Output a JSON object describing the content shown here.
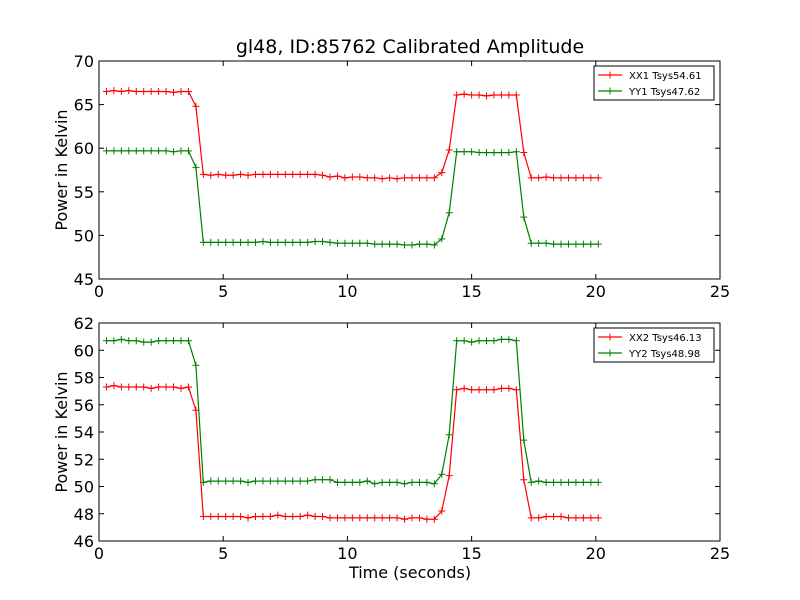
{
  "chart_data": [
    {
      "type": "line",
      "title": "gl48, ID:85762 Calibrated Amplitude",
      "xlabel": "",
      "ylabel": "Power in Kelvin",
      "xlim": [
        0,
        25
      ],
      "ylim": [
        45,
        70
      ],
      "xticks": [
        "0",
        "5",
        "10",
        "15",
        "20",
        "25"
      ],
      "yticks": [
        "45",
        "50",
        "55",
        "60",
        "65",
        "70"
      ],
      "grid": false,
      "legend_position": "top-right",
      "series": [
        {
          "name": "XX1 Tsys54.61",
          "color": "#ff0000",
          "x": [
            0.3,
            0.6,
            0.9,
            1.2,
            1.5,
            1.8,
            2.1,
            2.4,
            2.7,
            3.0,
            3.3,
            3.6,
            3.9,
            4.2,
            4.5,
            4.8,
            5.1,
            5.4,
            5.7,
            6.0,
            6.3,
            6.6,
            6.9,
            7.2,
            7.5,
            7.8,
            8.1,
            8.4,
            8.7,
            9.0,
            9.3,
            9.6,
            9.9,
            10.2,
            10.5,
            10.8,
            11.1,
            11.4,
            11.7,
            12.0,
            12.3,
            12.6,
            12.9,
            13.2,
            13.5,
            13.8,
            14.1,
            14.4,
            14.7,
            15.0,
            15.3,
            15.6,
            15.9,
            16.2,
            16.5,
            16.8,
            17.1,
            17.4,
            17.7,
            18.0,
            18.3,
            18.6,
            18.9,
            19.2,
            19.5,
            19.8,
            20.1
          ],
          "y": [
            66.5,
            66.6,
            66.5,
            66.6,
            66.5,
            66.5,
            66.5,
            66.5,
            66.5,
            66.4,
            66.5,
            66.5,
            64.8,
            57.0,
            56.9,
            57.0,
            56.9,
            56.9,
            57.0,
            56.9,
            57.0,
            57.0,
            57.0,
            57.0,
            57.0,
            57.0,
            57.0,
            57.0,
            57.0,
            56.9,
            56.7,
            56.8,
            56.6,
            56.7,
            56.7,
            56.6,
            56.6,
            56.5,
            56.6,
            56.5,
            56.6,
            56.6,
            56.6,
            56.6,
            56.6,
            57.2,
            59.8,
            66.1,
            66.2,
            66.1,
            66.1,
            66.0,
            66.1,
            66.1,
            66.1,
            66.1,
            59.5,
            56.6,
            56.6,
            56.7,
            56.6,
            56.6,
            56.6,
            56.6,
            56.6,
            56.6,
            56.6
          ]
        },
        {
          "name": "YY1 Tsys47.62",
          "color": "#008000",
          "x": [
            0.3,
            0.6,
            0.9,
            1.2,
            1.5,
            1.8,
            2.1,
            2.4,
            2.7,
            3.0,
            3.3,
            3.6,
            3.9,
            4.2,
            4.5,
            4.8,
            5.1,
            5.4,
            5.7,
            6.0,
            6.3,
            6.6,
            6.9,
            7.2,
            7.5,
            7.8,
            8.1,
            8.4,
            8.7,
            9.0,
            9.3,
            9.6,
            9.9,
            10.2,
            10.5,
            10.8,
            11.1,
            11.4,
            11.7,
            12.0,
            12.3,
            12.6,
            12.9,
            13.2,
            13.5,
            13.8,
            14.1,
            14.4,
            14.7,
            15.0,
            15.3,
            15.6,
            15.9,
            16.2,
            16.5,
            16.8,
            17.1,
            17.4,
            17.7,
            18.0,
            18.3,
            18.6,
            18.9,
            19.2,
            19.5,
            19.8,
            20.1
          ],
          "y": [
            59.7,
            59.7,
            59.7,
            59.7,
            59.7,
            59.7,
            59.7,
            59.7,
            59.7,
            59.6,
            59.7,
            59.7,
            57.8,
            49.2,
            49.2,
            49.2,
            49.2,
            49.2,
            49.2,
            49.2,
            49.2,
            49.3,
            49.2,
            49.2,
            49.2,
            49.2,
            49.2,
            49.2,
            49.3,
            49.3,
            49.2,
            49.1,
            49.1,
            49.1,
            49.1,
            49.1,
            49.0,
            49.0,
            49.0,
            49.0,
            48.9,
            48.9,
            49.0,
            49.0,
            48.9,
            49.6,
            52.6,
            59.6,
            59.6,
            59.6,
            59.5,
            59.5,
            59.5,
            59.5,
            59.5,
            59.6,
            52.1,
            49.1,
            49.1,
            49.1,
            49.0,
            49.0,
            49.0,
            49.0,
            49.0,
            49.0,
            49.0
          ]
        }
      ]
    },
    {
      "type": "line",
      "title": "",
      "xlabel": "Time (seconds)",
      "ylabel": "Power in Kelvin",
      "xlim": [
        0,
        25
      ],
      "ylim": [
        46,
        62
      ],
      "xticks": [
        "0",
        "5",
        "10",
        "15",
        "20",
        "25"
      ],
      "yticks": [
        "46",
        "48",
        "50",
        "52",
        "54",
        "56",
        "58",
        "60",
        "62"
      ],
      "grid": false,
      "legend_position": "top-right",
      "series": [
        {
          "name": "XX2 Tsys46.13",
          "color": "#ff0000",
          "x": [
            0.3,
            0.6,
            0.9,
            1.2,
            1.5,
            1.8,
            2.1,
            2.4,
            2.7,
            3.0,
            3.3,
            3.6,
            3.9,
            4.2,
            4.5,
            4.8,
            5.1,
            5.4,
            5.7,
            6.0,
            6.3,
            6.6,
            6.9,
            7.2,
            7.5,
            7.8,
            8.1,
            8.4,
            8.7,
            9.0,
            9.3,
            9.6,
            9.9,
            10.2,
            10.5,
            10.8,
            11.1,
            11.4,
            11.7,
            12.0,
            12.3,
            12.6,
            12.9,
            13.2,
            13.5,
            13.8,
            14.1,
            14.4,
            14.7,
            15.0,
            15.3,
            15.6,
            15.9,
            16.2,
            16.5,
            16.8,
            17.1,
            17.4,
            17.7,
            18.0,
            18.3,
            18.6,
            18.9,
            19.2,
            19.5,
            19.8,
            20.1
          ],
          "y": [
            57.3,
            57.4,
            57.3,
            57.3,
            57.3,
            57.3,
            57.2,
            57.3,
            57.3,
            57.3,
            57.2,
            57.3,
            55.6,
            47.8,
            47.8,
            47.8,
            47.8,
            47.8,
            47.8,
            47.7,
            47.8,
            47.8,
            47.8,
            47.9,
            47.8,
            47.8,
            47.8,
            47.9,
            47.8,
            47.8,
            47.7,
            47.7,
            47.7,
            47.7,
            47.7,
            47.7,
            47.7,
            47.7,
            47.7,
            47.7,
            47.6,
            47.7,
            47.7,
            47.6,
            47.6,
            48.2,
            50.8,
            57.1,
            57.2,
            57.1,
            57.1,
            57.1,
            57.1,
            57.2,
            57.2,
            57.1,
            50.5,
            47.7,
            47.7,
            47.8,
            47.8,
            47.8,
            47.7,
            47.7,
            47.7,
            47.7,
            47.7
          ]
        },
        {
          "name": "YY2 Tsys48.98",
          "color": "#008000",
          "x": [
            0.3,
            0.6,
            0.9,
            1.2,
            1.5,
            1.8,
            2.1,
            2.4,
            2.7,
            3.0,
            3.3,
            3.6,
            3.9,
            4.2,
            4.5,
            4.8,
            5.1,
            5.4,
            5.7,
            6.0,
            6.3,
            6.6,
            6.9,
            7.2,
            7.5,
            7.8,
            8.1,
            8.4,
            8.7,
            9.0,
            9.3,
            9.6,
            9.9,
            10.2,
            10.5,
            10.8,
            11.1,
            11.4,
            11.7,
            12.0,
            12.3,
            12.6,
            12.9,
            13.2,
            13.5,
            13.8,
            14.1,
            14.4,
            14.7,
            15.0,
            15.3,
            15.6,
            15.9,
            16.2,
            16.5,
            16.8,
            17.1,
            17.4,
            17.7,
            18.0,
            18.3,
            18.6,
            18.9,
            19.2,
            19.5,
            19.8,
            20.1
          ],
          "y": [
            60.7,
            60.7,
            60.8,
            60.7,
            60.7,
            60.6,
            60.6,
            60.7,
            60.7,
            60.7,
            60.7,
            60.7,
            58.9,
            50.3,
            50.4,
            50.4,
            50.4,
            50.4,
            50.4,
            50.3,
            50.4,
            50.4,
            50.4,
            50.4,
            50.4,
            50.4,
            50.4,
            50.4,
            50.5,
            50.5,
            50.5,
            50.3,
            50.3,
            50.3,
            50.3,
            50.4,
            50.2,
            50.3,
            50.3,
            50.3,
            50.2,
            50.3,
            50.3,
            50.3,
            50.2,
            50.9,
            53.8,
            60.7,
            60.7,
            60.6,
            60.7,
            60.7,
            60.7,
            60.8,
            60.8,
            60.7,
            53.4,
            50.3,
            50.4,
            50.3,
            50.3,
            50.3,
            50.3,
            50.3,
            50.3,
            50.3,
            50.3
          ]
        }
      ]
    }
  ]
}
